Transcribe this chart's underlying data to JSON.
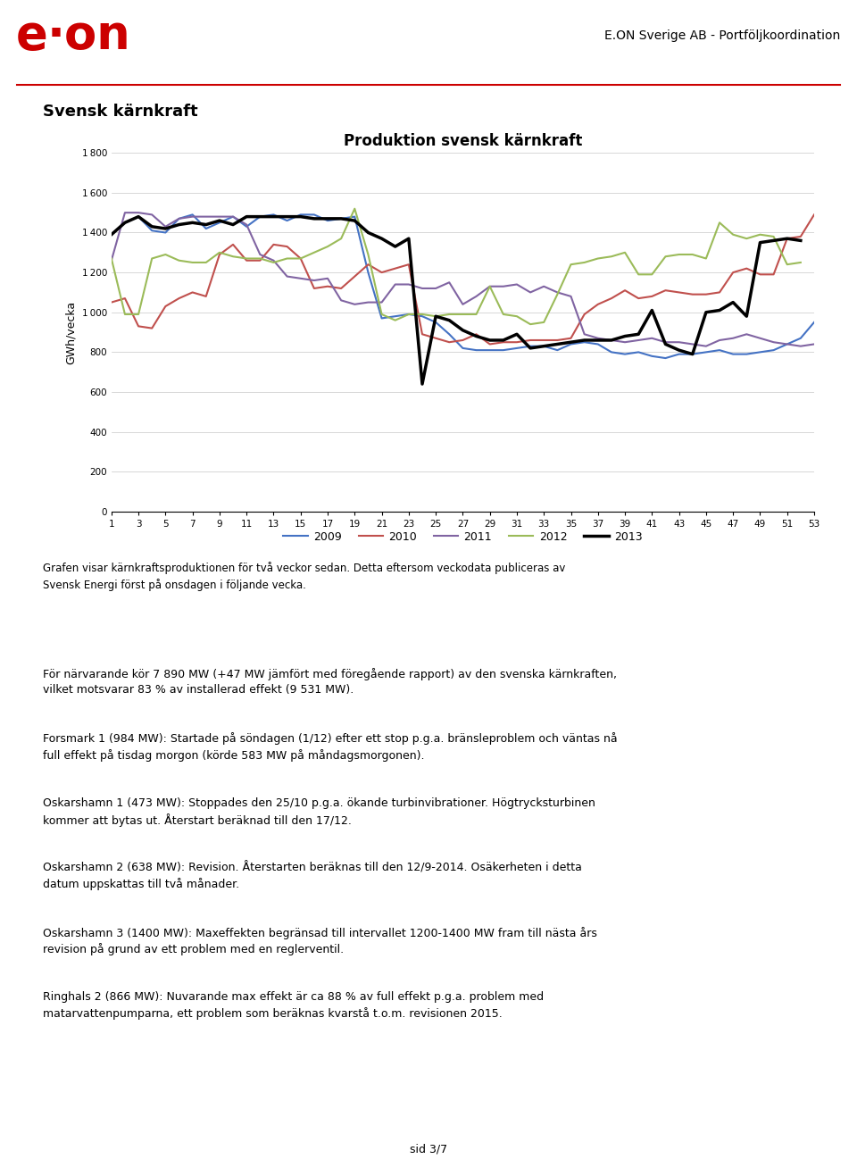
{
  "title": "Produktion svensk kärnkraft",
  "ylabel": "GWh/vecka",
  "page_title": "Svensk kärnkraft",
  "header_right": "E.ON Sverige AB - Portföljkoordination",
  "ylim": [
    0,
    1800
  ],
  "yticks": [
    0,
    200,
    400,
    600,
    800,
    1000,
    1200,
    1400,
    1600,
    1800
  ],
  "xticks": [
    1,
    3,
    5,
    7,
    9,
    11,
    13,
    15,
    17,
    19,
    21,
    23,
    25,
    27,
    29,
    31,
    33,
    35,
    37,
    39,
    41,
    43,
    45,
    47,
    49,
    51,
    53
  ],
  "legend_labels": [
    "2009",
    "2010",
    "2011",
    "2012",
    "2013"
  ],
  "legend_colors": [
    "#4472c4",
    "#c0504d",
    "#8064a2",
    "#9bbb59",
    "#000000"
  ],
  "caption": "Grafen visar kärnkraftsproduktionen för två veckor sedan. Detta eftersom veckodata publiceras av\nSvensk Energi först på onsdagen i följande vecka.",
  "body_texts": [
    "För närvarande kör 7 890 MW (+47 MW jämfört med föregående rapport) av den svenska kärnkraften,\nvilket motsvarar 83 % av installerad effekt (9 531 MW).",
    "Forsmark 1 (984 MW): Startade på söndagen (1/12) efter ett stop p.g.a. bränsleproblem och väntas nå\nfull effekt på tisdag morgon (körde 583 MW på måndagsmorgonen).",
    "Oskarshamn 1 (473 MW): Stoppades den 25/10 p.g.a. ökande turbinvibrationer. Högtrycksturbinen\nkommer att bytas ut. Återstart beräknad till den 17/12.",
    "Oskarshamn 2 (638 MW): Revision. Återstarten beräknas till den 12/9-2014. Osäkerheten i detta\ndatum uppskattas till två månader.",
    "Oskarshamn 3 (1400 MW): Maxeffekten begränsad till intervallet 1200-1400 MW fram till nästa års\nrevision på grund av ett problem med en reglerventil.",
    "Ringhals 2 (866 MW): Nuvarande max effekt är ca 88 % av full effekt p.g.a. problem med\nmatarvattenpumparna, ett problem som beräknas kvarstå t.o.m. revisionen 2015."
  ],
  "footer": "sid 3/7",
  "series_2009": [
    1390,
    1450,
    1480,
    1410,
    1400,
    1470,
    1490,
    1420,
    1450,
    1480,
    1430,
    1480,
    1490,
    1460,
    1490,
    1490,
    1460,
    1470,
    1480,
    1200,
    970,
    980,
    990,
    980,
    950,
    890,
    820,
    810,
    810,
    810,
    820,
    830,
    830,
    810,
    840,
    850,
    840,
    800,
    790,
    800,
    780,
    770,
    790,
    790,
    800,
    810,
    790,
    790,
    800,
    810,
    840,
    870,
    950
  ],
  "series_2010": [
    1050,
    1070,
    930,
    920,
    1030,
    1070,
    1100,
    1080,
    1290,
    1340,
    1260,
    1260,
    1340,
    1330,
    1270,
    1120,
    1130,
    1120,
    1180,
    1240,
    1200,
    1220,
    1240,
    890,
    870,
    850,
    860,
    890,
    840,
    850,
    850,
    860,
    860,
    860,
    870,
    990,
    1040,
    1070,
    1110,
    1070,
    1080,
    1110,
    1100,
    1090,
    1090,
    1100,
    1200,
    1220,
    1190,
    1190,
    1370,
    1380,
    1490
  ],
  "series_2011": [
    1260,
    1500,
    1500,
    1490,
    1430,
    1470,
    1480,
    1480,
    1480,
    1480,
    1440,
    1290,
    1260,
    1180,
    1170,
    1160,
    1170,
    1060,
    1040,
    1050,
    1050,
    1140,
    1140,
    1120,
    1120,
    1150,
    1040,
    1080,
    1130,
    1130,
    1140,
    1100,
    1130,
    1100,
    1080,
    890,
    870,
    860,
    850,
    860,
    870,
    850,
    850,
    840,
    830,
    860,
    870,
    890,
    870,
    850,
    840,
    830,
    840
  ],
  "series_2012": [
    1270,
    990,
    990,
    1270,
    1290,
    1260,
    1250,
    1250,
    1300,
    1280,
    1270,
    1270,
    1250,
    1270,
    1270,
    1300,
    1330,
    1370,
    1520,
    1290,
    990,
    960,
    990,
    990,
    980,
    990,
    990,
    990,
    1130,
    990,
    980,
    940,
    950,
    1090,
    1240,
    1250,
    1270,
    1280,
    1300,
    1190,
    1190,
    1280,
    1290,
    1290,
    1270,
    1450,
    1390,
    1370,
    1390,
    1380,
    1240,
    1250
  ],
  "series_2013": [
    1390,
    1450,
    1480,
    1430,
    1420,
    1440,
    1450,
    1440,
    1460,
    1440,
    1480,
    1480,
    1480,
    1480,
    1480,
    1470,
    1470,
    1470,
    1460,
    1400,
    1370,
    1330,
    1370,
    640,
    980,
    960,
    910,
    880,
    860,
    860,
    890,
    820,
    830,
    840,
    850,
    860,
    860,
    860,
    880,
    890,
    1010,
    840,
    810,
    790,
    1000,
    1010,
    1050,
    980,
    1350,
    1360,
    1370,
    1360,
    null
  ]
}
